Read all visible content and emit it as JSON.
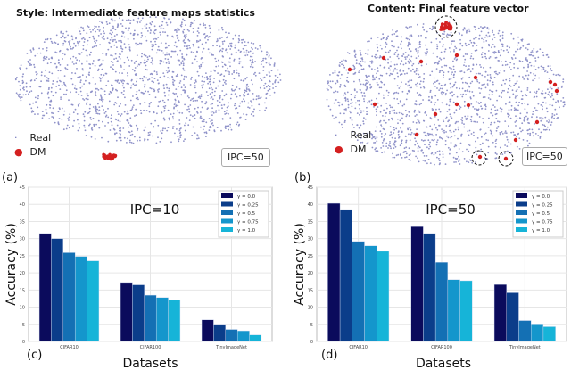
{
  "panels": {
    "a": {
      "label": "(a)",
      "title": "Style:  Intermediate feature maps statistics",
      "legend": [
        "Real",
        "DM"
      ],
      "tag": "IPC=50"
    },
    "b": {
      "label": "(b)",
      "title": "Content: Final feature vector",
      "legend": [
        "Real",
        "DM"
      ],
      "tag": "IPC=50"
    },
    "c": {
      "label": "(c)"
    },
    "d": {
      "label": "(d)"
    }
  },
  "colors": {
    "real": "#6b6fb8",
    "dm": "#d42020",
    "series": [
      "#0b0b5c",
      "#0b3d8a",
      "#1470b4",
      "#1496cc",
      "#16b4d8"
    ]
  },
  "chart_data": [
    {
      "type": "bar",
      "annotation": "IPC=10",
      "xlabel": "Datasets",
      "ylabel": "Accuracy (%)",
      "ylim": [
        0,
        45
      ],
      "yticks": [
        0,
        5,
        10,
        15,
        20,
        25,
        30,
        35,
        40,
        45
      ],
      "grid": true,
      "legend_position": "top-right",
      "categories": [
        "CIFAR10",
        "CIFAR100",
        "TinyImageNet"
      ],
      "series": [
        {
          "name": "γ = 0.0",
          "values": [
            31.5,
            17.2,
            6.3
          ]
        },
        {
          "name": "γ = 0.25",
          "values": [
            30.0,
            16.5,
            5.0
          ]
        },
        {
          "name": "γ = 0.5",
          "values": [
            25.9,
            13.5,
            3.5
          ]
        },
        {
          "name": "γ = 0.75",
          "values": [
            24.8,
            12.8,
            3.1
          ]
        },
        {
          "name": "γ = 1.0",
          "values": [
            23.5,
            12.1,
            1.9
          ]
        }
      ]
    },
    {
      "type": "bar",
      "annotation": "IPC=50",
      "xlabel": "Datasets",
      "ylabel": "Accuracy (%)",
      "ylim": [
        0,
        45
      ],
      "yticks": [
        0,
        5,
        10,
        15,
        20,
        25,
        30,
        35,
        40,
        45
      ],
      "grid": true,
      "legend_position": "top-right",
      "categories": [
        "CIFAR10",
        "CIFAR100",
        "TinyImageNet"
      ],
      "series": [
        {
          "name": "γ = 0.0",
          "values": [
            40.3,
            33.5,
            16.6
          ]
        },
        {
          "name": "γ = 0.25",
          "values": [
            38.5,
            31.5,
            14.2
          ]
        },
        {
          "name": "γ = 0.5",
          "values": [
            29.2,
            23.1,
            6.1
          ]
        },
        {
          "name": "γ = 0.75",
          "values": [
            27.9,
            18.0,
            5.1
          ]
        },
        {
          "name": "γ = 1.0",
          "values": [
            26.3,
            17.7,
            4.3
          ]
        }
      ]
    }
  ]
}
